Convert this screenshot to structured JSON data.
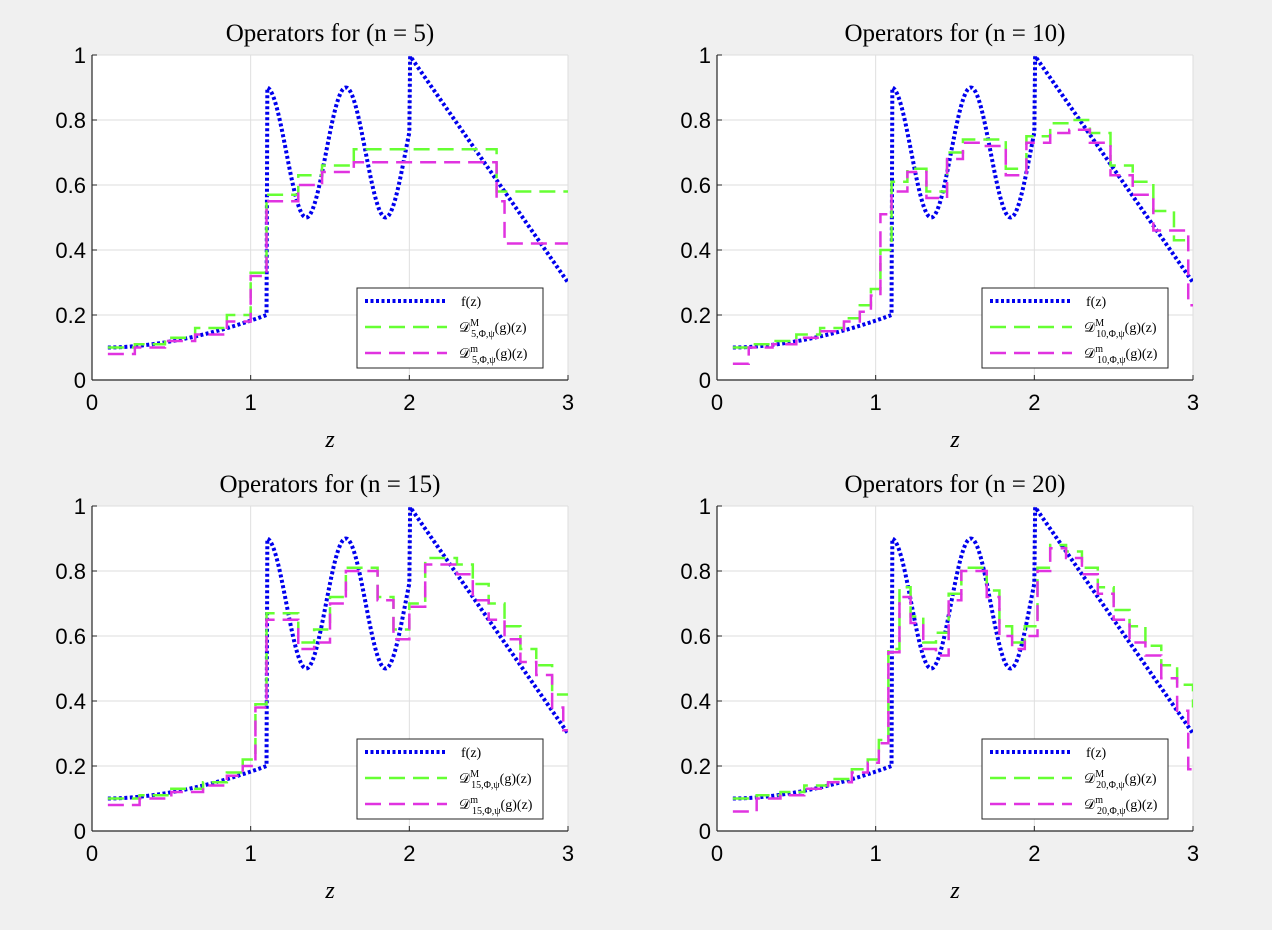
{
  "figure": {
    "background": "#f0f0f0"
  },
  "chart_data": [
    {
      "type": "line",
      "title": "Operators for (n = 5)",
      "n": "5",
      "xlabel": "z",
      "ylabel": "",
      "xlim": [
        0,
        3
      ],
      "ylim": [
        0,
        1
      ],
      "xticks": [
        "0",
        "1",
        "2",
        "3"
      ],
      "yticks": [
        "0",
        "0.2",
        "0.4",
        "0.6",
        "0.8",
        "1"
      ],
      "grid": true,
      "legend_position": "bottom-right",
      "legend": {
        "f": "f(z)",
        "op_prefix": "𝒟",
        "M_sup": "M",
        "m_sup": "m",
        "sub_suffix": ",Φ,ψ",
        "op_tail": "(g)(z)"
      },
      "series": [
        {
          "name": "f(z)",
          "color": "#0000ee",
          "style": "dotted",
          "kind": "function"
        },
        {
          "name": "D^M_{5,Φ,ψ}(g)(z)",
          "color": "#66ff33",
          "style": "dashed",
          "x": [
            0.1,
            0.27,
            0.46,
            0.65,
            0.85,
            1.0,
            1.1,
            1.3,
            1.45,
            1.65,
            2.5,
            2.55,
            3.0
          ],
          "y": [
            0.1,
            0.11,
            0.13,
            0.16,
            0.2,
            0.33,
            0.57,
            0.63,
            0.66,
            0.71,
            0.71,
            0.58,
            0.58
          ]
        },
        {
          "name": "D^m_{5,Φ,ψ}(g)(z)",
          "color": "#e033e0",
          "style": "dashed",
          "x": [
            0.1,
            0.27,
            0.46,
            0.65,
            0.85,
            1.0,
            1.1,
            1.3,
            1.45,
            1.65,
            2.5,
            2.55,
            2.6,
            3.0
          ],
          "y": [
            0.08,
            0.1,
            0.12,
            0.14,
            0.18,
            0.32,
            0.55,
            0.6,
            0.64,
            0.67,
            0.67,
            0.55,
            0.42,
            0.42
          ]
        }
      ]
    },
    {
      "type": "line",
      "title": "Operators for (n = 10)",
      "n": "10",
      "xlabel": "z",
      "ylabel": "",
      "xlim": [
        0,
        3
      ],
      "ylim": [
        0,
        1
      ],
      "xticks": [
        "0",
        "1",
        "2",
        "3"
      ],
      "yticks": [
        "0",
        "0.2",
        "0.4",
        "0.6",
        "0.8",
        "1"
      ],
      "grid": true,
      "legend_position": "bottom-right",
      "legend": {
        "f": "f(z)",
        "op_prefix": "𝒟",
        "M_sup": "M",
        "m_sup": "m",
        "sub_suffix": ",Φ,ψ",
        "op_tail": "(g)(z)"
      },
      "series": [
        {
          "name": "f(z)",
          "color": "#0000ee",
          "style": "dotted",
          "kind": "function"
        },
        {
          "name": "D^M_{10,Φ,ψ}(g)(z)",
          "color": "#66ff33",
          "style": "dashed",
          "x": [
            0.1,
            0.2,
            0.35,
            0.5,
            0.65,
            0.8,
            0.9,
            0.97,
            1.03,
            1.1,
            1.2,
            1.32,
            1.45,
            1.55,
            1.68,
            1.82,
            1.95,
            2.1,
            2.22,
            2.35,
            2.48,
            2.62,
            2.75,
            2.88,
            3.0
          ],
          "y": [
            0.1,
            0.11,
            0.12,
            0.14,
            0.16,
            0.19,
            0.23,
            0.28,
            0.4,
            0.61,
            0.65,
            0.58,
            0.7,
            0.74,
            0.74,
            0.65,
            0.75,
            0.79,
            0.8,
            0.76,
            0.66,
            0.61,
            0.52,
            0.43,
            0.43
          ]
        },
        {
          "name": "D^m_{10,Φ,ψ}(g)(z)",
          "color": "#e033e0",
          "style": "dashed",
          "x": [
            0.1,
            0.2,
            0.35,
            0.5,
            0.65,
            0.8,
            0.9,
            0.97,
            1.03,
            1.1,
            1.2,
            1.32,
            1.45,
            1.55,
            1.68,
            1.82,
            1.95,
            2.1,
            2.22,
            2.35,
            2.48,
            2.62,
            2.75,
            2.88,
            2.97,
            3.0
          ],
          "y": [
            0.05,
            0.1,
            0.11,
            0.13,
            0.15,
            0.18,
            0.21,
            0.26,
            0.51,
            0.58,
            0.64,
            0.56,
            0.68,
            0.73,
            0.72,
            0.63,
            0.73,
            0.76,
            0.77,
            0.73,
            0.63,
            0.57,
            0.46,
            0.46,
            0.23,
            0.23
          ]
        }
      ]
    },
    {
      "type": "line",
      "title": "Operators for (n = 15)",
      "n": "15",
      "xlabel": "z",
      "ylabel": "",
      "xlim": [
        0,
        3
      ],
      "ylim": [
        0,
        1
      ],
      "xticks": [
        "0",
        "1",
        "2",
        "3"
      ],
      "yticks": [
        "0",
        "0.2",
        "0.4",
        "0.6",
        "0.8",
        "1"
      ],
      "grid": true,
      "legend_position": "bottom-right",
      "legend": {
        "f": "f(z)",
        "op_prefix": "𝒟",
        "M_sup": "M",
        "m_sup": "m",
        "sub_suffix": ",Φ,ψ",
        "op_tail": "(g)(z)"
      },
      "series": [
        {
          "name": "f(z)",
          "color": "#0000ee",
          "style": "dotted",
          "kind": "function"
        },
        {
          "name": "D^M_{15,Φ,ψ}(g)(z)",
          "color": "#66ff33",
          "style": "dashed",
          "x": [
            0.1,
            0.3,
            0.5,
            0.7,
            0.85,
            0.95,
            1.03,
            1.1,
            1.2,
            1.3,
            1.4,
            1.5,
            1.6,
            1.7,
            1.8,
            1.9,
            2.0,
            2.1,
            2.2,
            2.3,
            2.4,
            2.5,
            2.6,
            2.7,
            2.8,
            2.9,
            3.0
          ],
          "y": [
            0.1,
            0.11,
            0.13,
            0.15,
            0.18,
            0.22,
            0.39,
            0.67,
            0.67,
            0.58,
            0.62,
            0.72,
            0.81,
            0.81,
            0.72,
            0.62,
            0.7,
            0.84,
            0.84,
            0.82,
            0.76,
            0.7,
            0.63,
            0.56,
            0.51,
            0.42,
            0.42
          ]
        },
        {
          "name": "D^m_{15,Φ,ψ}(g)(z)",
          "color": "#e033e0",
          "style": "dashed",
          "x": [
            0.1,
            0.3,
            0.5,
            0.7,
            0.85,
            0.95,
            1.03,
            1.1,
            1.2,
            1.3,
            1.4,
            1.5,
            1.6,
            1.7,
            1.8,
            1.9,
            2.0,
            2.1,
            2.2,
            2.3,
            2.4,
            2.5,
            2.6,
            2.7,
            2.8,
            2.9,
            2.97,
            3.0
          ],
          "y": [
            0.08,
            0.1,
            0.12,
            0.14,
            0.17,
            0.2,
            0.38,
            0.65,
            0.65,
            0.56,
            0.58,
            0.7,
            0.8,
            0.8,
            0.71,
            0.59,
            0.69,
            0.82,
            0.82,
            0.79,
            0.71,
            0.65,
            0.59,
            0.52,
            0.48,
            0.38,
            0.31,
            0.31
          ]
        }
      ]
    },
    {
      "type": "line",
      "title": "Operators for (n = 20)",
      "n": "20",
      "xlabel": "z",
      "ylabel": "",
      "xlim": [
        0,
        3
      ],
      "ylim": [
        0,
        1
      ],
      "xticks": [
        "0",
        "1",
        "2",
        "3"
      ],
      "yticks": [
        "0",
        "0.2",
        "0.4",
        "0.6",
        "0.8",
        "1"
      ],
      "grid": true,
      "legend_position": "bottom-right",
      "legend": {
        "f": "f(z)",
        "op_prefix": "𝒟",
        "M_sup": "M",
        "m_sup": "m",
        "sub_suffix": ",Φ,ψ",
        "op_tail": "(g)(z)"
      },
      "series": [
        {
          "name": "f(z)",
          "color": "#0000ee",
          "style": "dotted",
          "kind": "function"
        },
        {
          "name": "D^M_{20,Φ,ψ}(g)(z)",
          "color": "#66ff33",
          "style": "dashed",
          "x": [
            0.1,
            0.25,
            0.4,
            0.55,
            0.7,
            0.85,
            0.95,
            1.02,
            1.08,
            1.15,
            1.22,
            1.3,
            1.38,
            1.46,
            1.54,
            1.62,
            1.7,
            1.78,
            1.86,
            1.94,
            2.02,
            2.1,
            2.2,
            2.3,
            2.4,
            2.5,
            2.6,
            2.7,
            2.8,
            2.9,
            3.0
          ],
          "y": [
            0.1,
            0.11,
            0.12,
            0.14,
            0.16,
            0.19,
            0.22,
            0.28,
            0.56,
            0.75,
            0.66,
            0.58,
            0.61,
            0.73,
            0.81,
            0.81,
            0.74,
            0.63,
            0.58,
            0.63,
            0.81,
            0.88,
            0.86,
            0.81,
            0.75,
            0.68,
            0.63,
            0.57,
            0.51,
            0.45,
            0.38
          ]
        },
        {
          "name": "D^m_{20,Φ,ψ}(g)(z)",
          "color": "#e033e0",
          "style": "dashed",
          "x": [
            0.1,
            0.25,
            0.4,
            0.55,
            0.7,
            0.85,
            0.95,
            1.02,
            1.08,
            1.15,
            1.22,
            1.3,
            1.38,
            1.46,
            1.54,
            1.62,
            1.7,
            1.78,
            1.86,
            1.94,
            2.02,
            2.1,
            2.2,
            2.3,
            2.4,
            2.5,
            2.6,
            2.7,
            2.8,
            2.9,
            2.97,
            3.0
          ],
          "y": [
            0.06,
            0.1,
            0.11,
            0.13,
            0.15,
            0.18,
            0.21,
            0.27,
            0.55,
            0.72,
            0.64,
            0.56,
            0.54,
            0.71,
            0.8,
            0.8,
            0.72,
            0.6,
            0.56,
            0.6,
            0.8,
            0.87,
            0.84,
            0.79,
            0.73,
            0.65,
            0.58,
            0.54,
            0.47,
            0.37,
            0.19,
            0.19
          ]
        }
      ]
    }
  ]
}
